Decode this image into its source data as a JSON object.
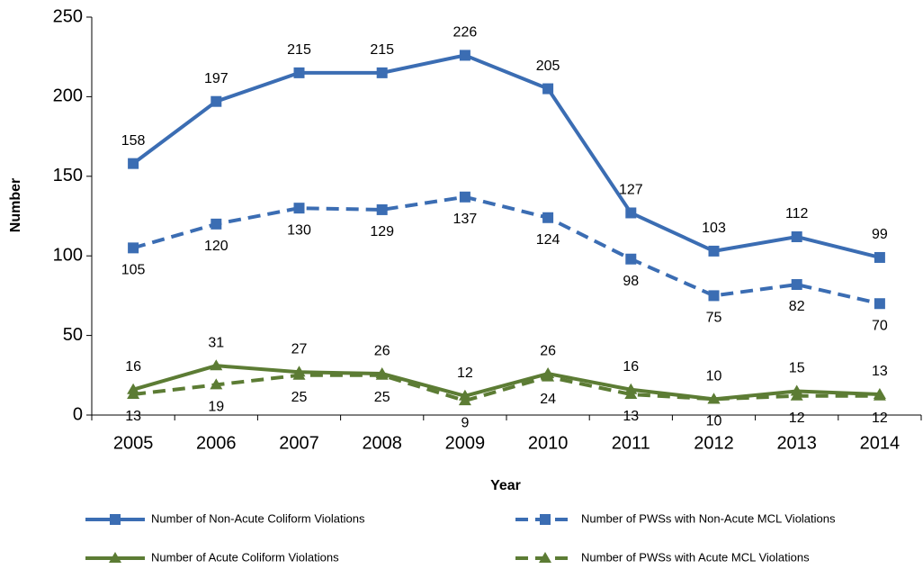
{
  "chart_data": {
    "type": "line",
    "x_label": "Year",
    "y_label": "Number",
    "categories": [
      "2005",
      "2006",
      "2007",
      "2008",
      "2009",
      "2010",
      "2011",
      "2012",
      "2013",
      "2014"
    ],
    "series": [
      {
        "name": "Number of Non-Acute Coliform Violations",
        "color": "#3b6db3",
        "dash": false,
        "marker": "square",
        "label_side": "above",
        "values": [
          158,
          197,
          215,
          215,
          226,
          205,
          127,
          103,
          112,
          99
        ]
      },
      {
        "name": "Number of PWSs with Non-Acute MCL Violations",
        "color": "#3b6db3",
        "dash": true,
        "marker": "square",
        "label_side": "below",
        "values": [
          105,
          120,
          130,
          129,
          137,
          124,
          98,
          75,
          82,
          70
        ]
      },
      {
        "name": "Number of Acute Coliform Violations",
        "color": "#5c7c34",
        "dash": false,
        "marker": "triangle",
        "label_side": "above",
        "values": [
          16,
          31,
          27,
          26,
          12,
          26,
          16,
          10,
          15,
          13
        ]
      },
      {
        "name": "Number of PWSs with Acute MCL Violations",
        "color": "#5c7c34",
        "dash": true,
        "marker": "triangle",
        "label_side": "below",
        "values": [
          13,
          19,
          25,
          25,
          9,
          24,
          13,
          10,
          12,
          12
        ]
      }
    ],
    "ylim": [
      0,
      250
    ],
    "yticks": [
      0,
      50,
      100,
      150,
      200,
      250
    ],
    "grid": false,
    "legend": "bottom"
  }
}
